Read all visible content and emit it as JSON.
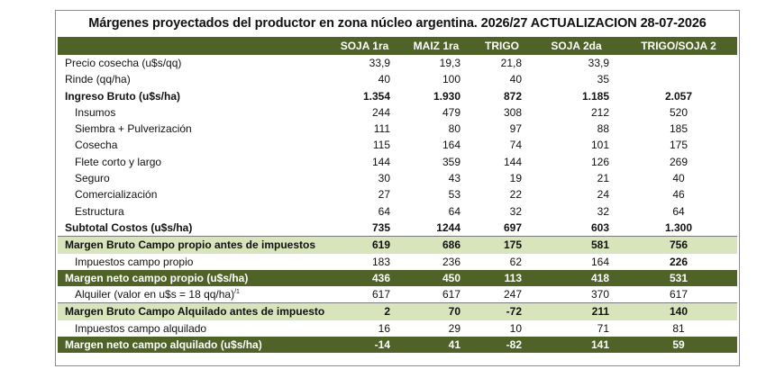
{
  "title": "Márgenes  proyectados del productor en zona núcleo argentina. 2026/27  ACTUALIZACION 28-07-2026",
  "columns": [
    "SOJA 1ra",
    "MAIZ 1ra",
    "TRIGO",
    "SOJA 2da",
    "TRIGO/SOJA 2"
  ],
  "rows": [
    {
      "label": "Precio cosecha (u$s/qq)",
      "values": [
        "33,9",
        "19,3",
        "21,8",
        "33,9",
        ""
      ]
    },
    {
      "label": "Rinde (qq/ha)",
      "values": [
        "40",
        "100",
        "40",
        "35",
        ""
      ]
    },
    {
      "label": "Ingreso Bruto (u$s/ha)",
      "values": [
        "1.354",
        "1.930",
        "872",
        "1.185",
        "2.057"
      ]
    },
    {
      "label": "Insumos",
      "values": [
        "244",
        "479",
        "308",
        "212",
        "520"
      ]
    },
    {
      "label": "Siembra + Pulverización",
      "values": [
        "111",
        "80",
        "97",
        "88",
        "185"
      ]
    },
    {
      "label": "Cosecha",
      "values": [
        "115",
        "164",
        "74",
        "101",
        "175"
      ]
    },
    {
      "label": "Flete corto y largo",
      "values": [
        "144",
        "359",
        "144",
        "126",
        "269"
      ]
    },
    {
      "label": "Seguro",
      "values": [
        "30",
        "43",
        "19",
        "21",
        "40"
      ]
    },
    {
      "label": "Comercialización",
      "values": [
        "27",
        "53",
        "22",
        "24",
        "46"
      ]
    },
    {
      "label": "Estructura",
      "values": [
        "64",
        "64",
        "32",
        "32",
        "64"
      ]
    },
    {
      "label": "Subtotal Costos (u$s/ha)",
      "values": [
        "735",
        "1244",
        "697",
        "603",
        "1.300"
      ]
    },
    {
      "label": "Margen Bruto Campo propio antes de impuestos",
      "values": [
        "619",
        "686",
        "175",
        "581",
        "756"
      ]
    },
    {
      "label": "Impuestos  campo propio",
      "values": [
        "183",
        "236",
        "62",
        "164",
        "226"
      ]
    },
    {
      "label": "Margen neto campo propio (u$s/ha)",
      "values": [
        "436",
        "450",
        "113",
        "418",
        "531"
      ]
    },
    {
      "label": "Alquiler (valor en u$s = 18 qq/ha)",
      "footnote": "/1",
      "values": [
        "617",
        "617",
        "247",
        "370",
        "617"
      ]
    },
    {
      "label": "Margen Bruto Campo Alquilado antes de impuesto",
      "values": [
        "2",
        "70",
        "-72",
        "211",
        "140"
      ]
    },
    {
      "label": "Impuestos campo alquilado",
      "values": [
        "16",
        "29",
        "10",
        "71",
        "81"
      ]
    },
    {
      "label": "Margen neto campo alquilado (u$s/ha)",
      "values": [
        "-14",
        "41",
        "-82",
        "141",
        "59"
      ]
    }
  ],
  "colors": {
    "header_green": "#4f6228",
    "highlight_green": "#d8e4bc"
  }
}
